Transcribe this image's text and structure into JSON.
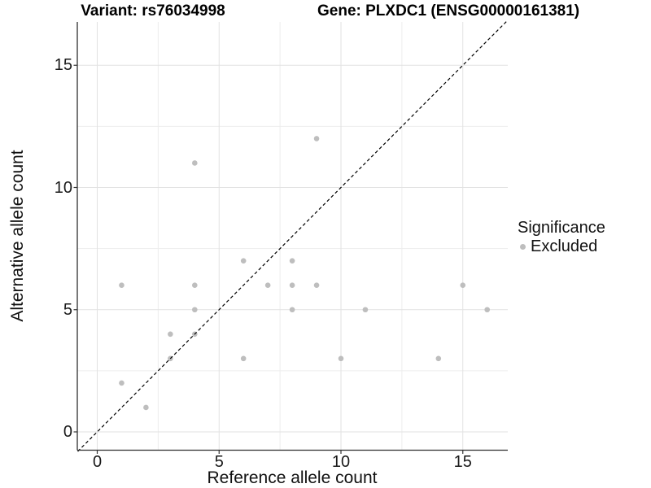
{
  "titles": {
    "variant": "Variant: rs76034998",
    "gene": "Gene: PLXDC1 (ENSG00000161381)"
  },
  "legend": {
    "title": "Significance",
    "items": [
      {
        "label": "Excluded",
        "color": "#bebebe"
      }
    ]
  },
  "chart_data": {
    "type": "scatter",
    "title": "Variant: rs76034998   |   Gene: PLXDC1 (ENSG00000161381)",
    "xlabel": "Reference allele count",
    "ylabel": "Alternative allele count",
    "xlim": [
      -0.85,
      16.85
    ],
    "ylim": [
      -0.85,
      16.85
    ],
    "x_ticks": [
      0,
      5,
      10,
      15
    ],
    "y_ticks": [
      0,
      5,
      10,
      15
    ],
    "x_minor_ticks": [
      2.5,
      7.5,
      12.5
    ],
    "y_minor_ticks": [
      2.5,
      7.5,
      12.5
    ],
    "grid": true,
    "legend_position": "right",
    "identity_line": {
      "type": "dashed",
      "equation": "y = x",
      "color": "#000000"
    },
    "series": [
      {
        "name": "Excluded",
        "color": "#bebebe",
        "points": [
          [
            1,
            2
          ],
          [
            1,
            6
          ],
          [
            2,
            1
          ],
          [
            3,
            3
          ],
          [
            3,
            4
          ],
          [
            4,
            4
          ],
          [
            4,
            5
          ],
          [
            4,
            6
          ],
          [
            4,
            11
          ],
          [
            6,
            3
          ],
          [
            6,
            7
          ],
          [
            7,
            6
          ],
          [
            8,
            5
          ],
          [
            8,
            6
          ],
          [
            8,
            7
          ],
          [
            9,
            6
          ],
          [
            9,
            12
          ],
          [
            10,
            3
          ],
          [
            11,
            5
          ],
          [
            14,
            3
          ],
          [
            15,
            6
          ],
          [
            16,
            5
          ]
        ]
      }
    ]
  },
  "colors": {
    "point": "#bebebe",
    "grid_major": "#e2e2e2",
    "grid_minor": "#ededed",
    "axis_line": "#2f2f2f",
    "tick_mark": "#333333",
    "diagonal": "#000000"
  }
}
